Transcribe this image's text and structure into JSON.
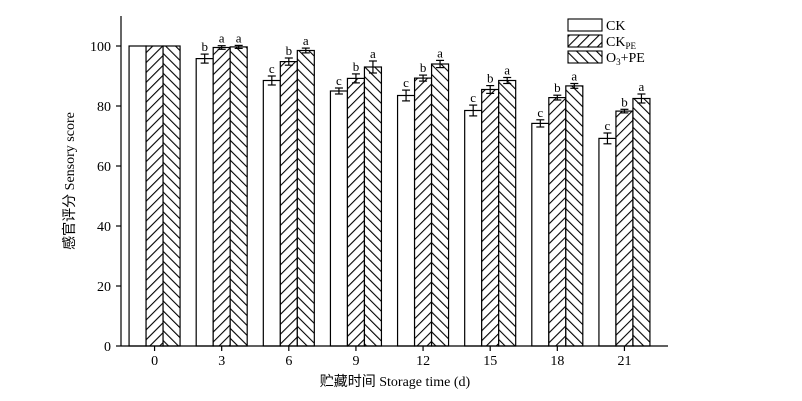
{
  "chart_data": {
    "type": "bar",
    "xlabel": "贮藏时间 Storage time (d)",
    "ylabel": "感官评分 Sensory score",
    "ylim": [
      0,
      110
    ],
    "yticks": [
      "0",
      "20",
      "40",
      "60",
      "80",
      "100"
    ],
    "categories": [
      "0",
      "3",
      "6",
      "9",
      "12",
      "15",
      "18",
      "21"
    ],
    "legend_position": "top-right",
    "series": [
      {
        "name": "CK",
        "pattern": "open",
        "values": [
          100,
          95.8,
          88.5,
          85.0,
          83.5,
          78.5,
          74.2,
          69.2
        ],
        "errors": [
          0,
          1.5,
          1.5,
          1.0,
          1.8,
          1.8,
          1.2,
          1.8
        ],
        "letters": [
          "",
          "b",
          "c",
          "c",
          "c",
          "c",
          "c",
          "c"
        ]
      },
      {
        "name": "CK",
        "name_sub": "PE",
        "pattern": "hatch-forward",
        "values": [
          100,
          99.5,
          94.8,
          89.2,
          89.3,
          85.5,
          82.8,
          78.3
        ],
        "errors": [
          0,
          0.6,
          1.2,
          1.5,
          1.0,
          1.3,
          0.8,
          0.6
        ],
        "letters": [
          "",
          "a",
          "b",
          "b",
          "b",
          "b",
          "b",
          "b"
        ]
      },
      {
        "name_pre": "O",
        "name_sub": "3",
        "name_post": "+PE",
        "pattern": "hatch-back",
        "values": [
          100,
          99.7,
          98.5,
          93.0,
          94.0,
          88.5,
          86.7,
          82.5
        ],
        "errors": [
          0,
          0.5,
          0.8,
          2.0,
          1.2,
          1.0,
          0.8,
          1.5
        ],
        "letters": [
          "",
          "a",
          "a",
          "a",
          "a",
          "a",
          "a",
          "a"
        ]
      }
    ]
  }
}
